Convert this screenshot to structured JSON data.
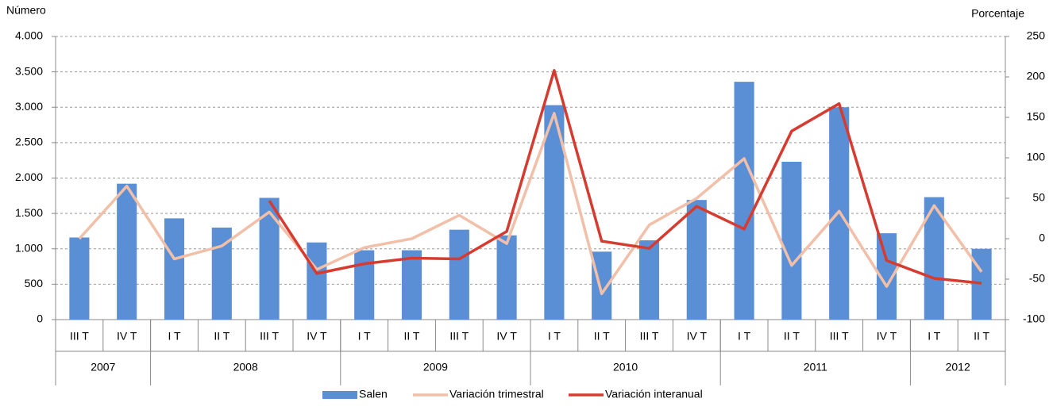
{
  "chart_data": {
    "type": "bar-line",
    "ylabel": "Número",
    "y2label": "Porcentaje",
    "categories": [
      "III T",
      "IV T",
      "I T",
      "II T",
      "III T",
      "IV T",
      "I T",
      "II T",
      "III T",
      "IV T",
      "I T",
      "II T",
      "III T",
      "IV T",
      "I T",
      "II T",
      "III T",
      "IV T",
      "I T",
      "II T"
    ],
    "year_groups": [
      {
        "label": "2007",
        "span": 2
      },
      {
        "label": "2008",
        "span": 4
      },
      {
        "label": "2009",
        "span": 4
      },
      {
        "label": "2010",
        "span": 4
      },
      {
        "label": "2011",
        "span": 4
      },
      {
        "label": "2012",
        "span": 2
      }
    ],
    "series": [
      {
        "name": "Salen",
        "type": "bar",
        "axis": "y",
        "color": "#5a8fd5",
        "values": [
          1160,
          1920,
          1430,
          1300,
          1720,
          1090,
          980,
          980,
          1270,
          1190,
          3030,
          960,
          1120,
          1690,
          3360,
          2230,
          3000,
          1220,
          1730,
          1000
        ]
      },
      {
        "name": "Variación trimestral",
        "type": "line",
        "axis": "y2",
        "color": "#f2bfa8",
        "values": [
          0,
          65,
          -25,
          -9,
          33,
          -38,
          -11,
          0,
          29,
          -6,
          155,
          -68,
          17,
          50,
          99,
          -33,
          34,
          -59,
          41,
          -41
        ]
      },
      {
        "name": "Variación interanual",
        "type": "line",
        "axis": "y2",
        "color": "#d63b2f",
        "values": [
          null,
          null,
          null,
          null,
          47,
          -43,
          -31,
          -24,
          -25,
          9,
          208,
          -3,
          -12,
          40,
          12,
          133,
          167,
          -27,
          -49,
          -55
        ]
      }
    ],
    "ylim": [
      0,
      4000
    ],
    "yticks": [
      0,
      500,
      {
        "value": 1000,
        "label": "1.000"
      },
      {
        "value": 1500,
        "label": "1.500"
      },
      {
        "value": 2000,
        "label": "2.000"
      },
      {
        "value": 2500,
        "label": "2.500"
      },
      {
        "value": 3000,
        "label": "3.000"
      },
      {
        "value": 3500,
        "label": "3.500"
      },
      {
        "value": 4000,
        "label": "4.000"
      }
    ],
    "y2lim": [
      -100,
      250
    ],
    "y2ticks": [
      -100,
      -50,
      0,
      50,
      100,
      150,
      200,
      250
    ],
    "grid": true
  }
}
